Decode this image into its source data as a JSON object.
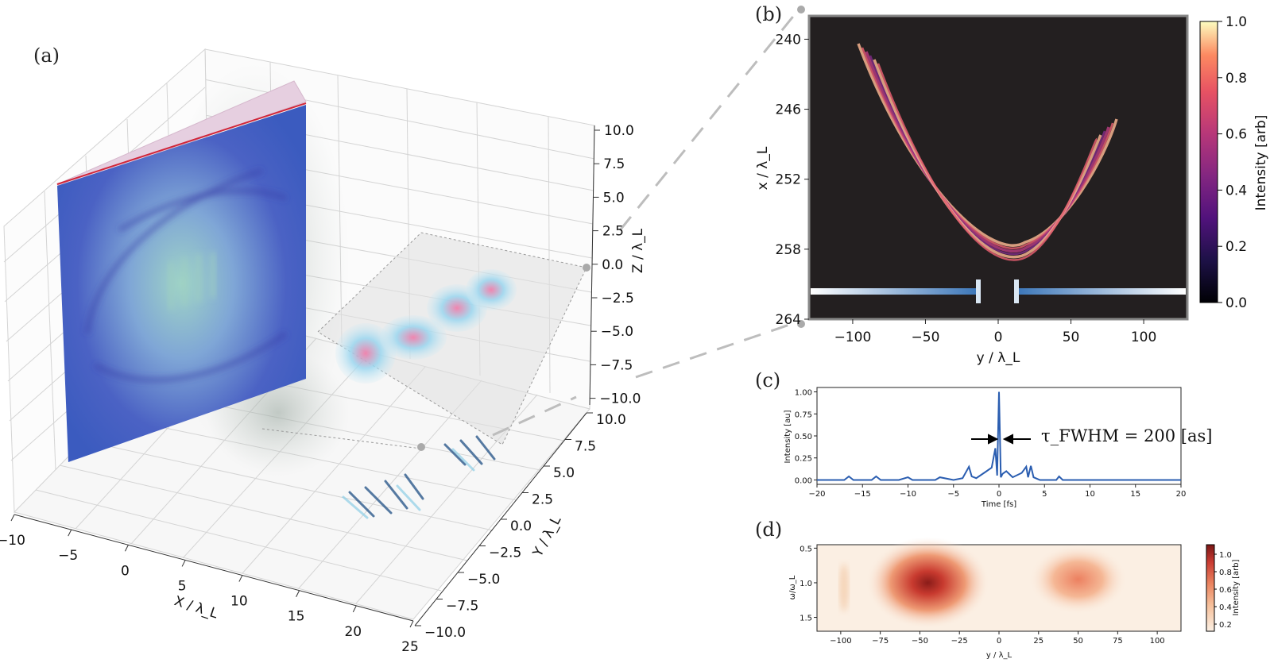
{
  "figure": {
    "panel_labels": [
      "(a)",
      "(b)",
      "(c)",
      "(d)"
    ]
  },
  "chart_data": [
    {
      "panel": "(a)",
      "type": "scatter",
      "title": "",
      "xlabel": "X / λ_L",
      "ylabel": "Y / λ_L",
      "zlabel": "Z / λ_L",
      "x_ticks": [
        "−10",
        "−5",
        "0",
        "5",
        "10",
        "15",
        "20",
        "25"
      ],
      "y_ticks": [
        "−10.0",
        "−7.5",
        "−5.0",
        "−2.5",
        "0.0",
        "2.5",
        "5.0",
        "7.5",
        "10.0"
      ],
      "z_ticks": [
        "10.0",
        "7.5",
        "5.0",
        "2.5",
        "0.0",
        "−2.5",
        "−5.0",
        "−7.5",
        "−10.0"
      ],
      "xlim": [
        -10,
        25
      ],
      "ylim": [
        -10,
        10
      ],
      "zlim": [
        -10,
        10
      ],
      "grid": true
    },
    {
      "panel": "(b)",
      "type": "heatmap",
      "xlabel": "y / λ_L",
      "ylabel": "x / λ_L",
      "x_ticks": [
        "−100",
        "−50",
        "0",
        "50",
        "100"
      ],
      "y_ticks": [
        "240",
        "246",
        "252",
        "258",
        "264"
      ],
      "xlim": [
        -130,
        130
      ],
      "ylim": [
        264,
        238
      ],
      "colorbar_label": "Intensity [arb]",
      "colorbar_ticks": [
        "0.0",
        "0.2",
        "0.4",
        "0.6",
        "0.8",
        "1.0"
      ],
      "colormap": "magma",
      "background": "#231f20"
    },
    {
      "panel": "(c)",
      "type": "line",
      "xlabel": "Time [fs]",
      "ylabel": "Intensity [au]",
      "x_ticks": [
        "−20",
        "−15",
        "−10",
        "−5",
        "0",
        "5",
        "10",
        "15",
        "20"
      ],
      "y_ticks": [
        "0.00",
        "0.25",
        "0.50",
        "0.75",
        "1.00"
      ],
      "xlim": [
        -20,
        20
      ],
      "ylim": [
        -0.05,
        1.05
      ],
      "annotation": "τ_FWHM = 200 [as]",
      "color": "#2a5db0",
      "x": [
        -20,
        -17,
        -16.5,
        -16,
        -14,
        -13.5,
        -13,
        -11,
        -10,
        -9.5,
        -8,
        -7,
        -6.5,
        -5,
        -4,
        -3.3,
        -3,
        -2.5,
        -1.5,
        -0.8,
        -0.4,
        -0.2,
        0,
        0.2,
        0.4,
        0.8,
        1.5,
        2.5,
        3,
        3.2,
        3.5,
        3.8,
        4.5,
        6.3,
        6.6,
        7,
        10,
        20
      ],
      "y": [
        0.0,
        0.0,
        0.04,
        0.0,
        0.0,
        0.04,
        0.0,
        0.0,
        0.03,
        0.0,
        0.0,
        0.0,
        0.03,
        0.0,
        0.02,
        0.15,
        0.04,
        0.02,
        0.09,
        0.14,
        0.36,
        0.05,
        1.0,
        0.03,
        0.07,
        0.1,
        0.03,
        0.08,
        0.15,
        0.03,
        0.16,
        0.03,
        0.0,
        0.0,
        0.04,
        0.0,
        0.0,
        0.0
      ]
    },
    {
      "panel": "(d)",
      "type": "heatmap",
      "xlabel": "y / λ_L",
      "ylabel": "ω/ω_L",
      "x_ticks": [
        "−100",
        "−75",
        "−50",
        "−25",
        "0",
        "25",
        "50",
        "75",
        "100"
      ],
      "y_ticks": [
        "0.5",
        "1.0",
        "1.5"
      ],
      "xlim": [
        -115,
        115
      ],
      "ylim": [
        1.7,
        0.45
      ],
      "colorbar_label": "Intensity [arb]",
      "colorbar_ticks": [
        "0.2",
        "0.4",
        "0.6",
        "0.8",
        "1.0"
      ],
      "colormap": "Reds",
      "peaks": [
        {
          "y": -45,
          "w": 1.0,
          "value": 1.0
        },
        {
          "y": 50,
          "w": 0.95,
          "value": 0.45
        }
      ]
    }
  ]
}
